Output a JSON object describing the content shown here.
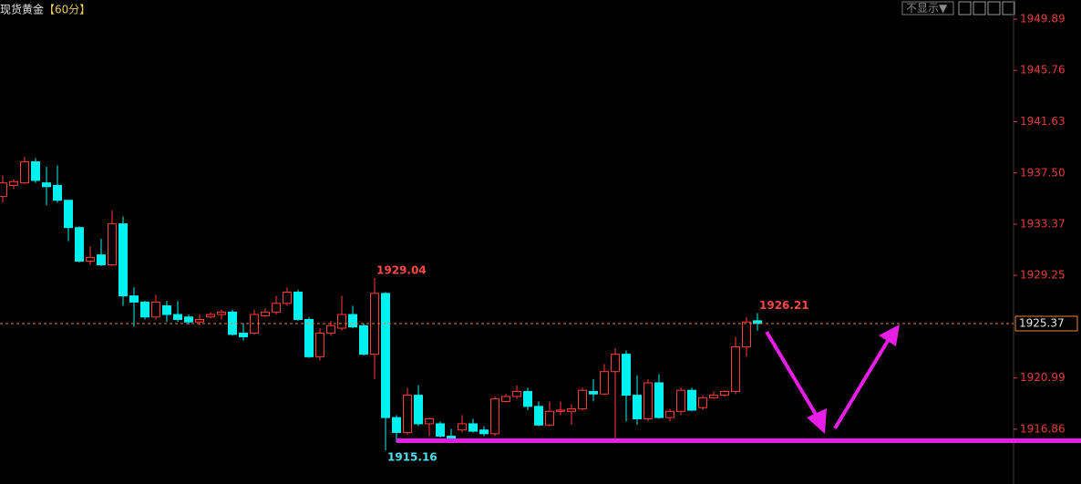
{
  "header": {
    "title": "现货黄金",
    "period": "【60分】",
    "display_button": "不显示▼"
  },
  "chart_data": {
    "type": "candlestick",
    "series": [
      {
        "up_color": "#ff3c3c",
        "down_color": "#00f0f0",
        "open": [
          1935.6,
          1936.5,
          1936.7,
          1938.4,
          1936.7,
          1936.5,
          1935.3,
          1933.1,
          1930.4,
          1930.9,
          1930.1,
          1933.4,
          1927.6,
          1927.1,
          1925.9,
          1926.8,
          1926.1,
          1925.9,
          1925.5,
          1925.9,
          1926.1,
          1926.3,
          1924.6,
          1924.6,
          1926.0,
          1926.3,
          1927.0,
          1927.9,
          1925.7,
          1922.7,
          1924.6,
          1925.0,
          1926.1,
          1925.2,
          1922.9,
          1927.8,
          1917.8,
          1916.6,
          1919.6,
          1917.3,
          1917.3,
          1916.3,
          1916.8,
          1917.3,
          1916.8,
          1916.5,
          1919.1,
          1919.5,
          1919.9,
          1918.7,
          1917.2,
          1918.3,
          1918.3,
          1918.5,
          1919.9,
          1919.7,
          1921.5,
          1922.9,
          1919.6,
          1917.7,
          1920.6,
          1917.8,
          1918.3,
          1920.0,
          1918.6,
          1919.4,
          1919.6,
          1919.9,
          1923.5,
          1925.6
        ],
        "high": [
          1937.3,
          1937.0,
          1938.8,
          1938.7,
          1938.0,
          1938.1,
          1935.3,
          1933.2,
          1931.6,
          1932.2,
          1934.5,
          1934.0,
          1928.3,
          1927.2,
          1927.7,
          1927.2,
          1927.2,
          1926.1,
          1926.1,
          1926.3,
          1926.5,
          1926.5,
          1925.4,
          1926.5,
          1926.6,
          1927.6,
          1928.3,
          1928.1,
          1925.9,
          1925.0,
          1925.6,
          1927.6,
          1926.8,
          1925.4,
          1929.04,
          1927.9,
          1918.0,
          1920.2,
          1920.4,
          1917.8,
          1917.5,
          1916.9,
          1918.0,
          1917.7,
          1917.1,
          1919.5,
          1919.7,
          1920.4,
          1920.2,
          1919.1,
          1919.1,
          1919.1,
          1918.9,
          1920.2,
          1920.9,
          1922.1,
          1923.4,
          1923.2,
          1921.2,
          1920.9,
          1921.3,
          1918.5,
          1920.2,
          1920.2,
          1919.6,
          1919.9,
          1920.0,
          1924.3,
          1925.9,
          1926.21
        ],
        "low": [
          1935.1,
          1936.2,
          1936.6,
          1936.7,
          1934.9,
          1935.1,
          1932.0,
          1930.3,
          1930.1,
          1930.0,
          1930.0,
          1926.8,
          1925.1,
          1925.7,
          1925.7,
          1925.5,
          1925.5,
          1925.3,
          1925.2,
          1925.8,
          1925.7,
          1924.4,
          1924.0,
          1924.5,
          1925.9,
          1926.1,
          1926.8,
          1925.6,
          1922.6,
          1922.4,
          1924.4,
          1924.8,
          1925.0,
          1922.8,
          1920.9,
          1915.16,
          1915.8,
          1916.4,
          1917.1,
          1916.3,
          1916.2,
          1915.9,
          1916.6,
          1916.6,
          1916.3,
          1916.3,
          1919.0,
          1919.3,
          1918.4,
          1917.1,
          1917.1,
          1918.0,
          1917.2,
          1918.4,
          1919.1,
          1919.6,
          1916.1,
          1917.5,
          1917.2,
          1917.5,
          1917.7,
          1917.5,
          1918.0,
          1918.3,
          1918.4,
          1919.3,
          1919.5,
          1919.7,
          1922.7,
          1924.8
        ],
        "close": [
          1936.7,
          1936.8,
          1938.4,
          1936.9,
          1936.4,
          1935.3,
          1933.1,
          1930.4,
          1930.7,
          1930.1,
          1933.4,
          1927.6,
          1927.1,
          1925.9,
          1927.1,
          1926.1,
          1925.7,
          1925.5,
          1925.7,
          1926.1,
          1926.3,
          1924.5,
          1924.3,
          1926.1,
          1926.3,
          1927.0,
          1927.9,
          1925.7,
          1922.7,
          1924.6,
          1925.2,
          1926.1,
          1925.1,
          1922.9,
          1927.8,
          1917.8,
          1916.6,
          1919.6,
          1917.3,
          1917.7,
          1916.3,
          1916.0,
          1917.3,
          1916.7,
          1916.5,
          1919.3,
          1919.5,
          1919.9,
          1918.7,
          1917.2,
          1918.3,
          1918.4,
          1918.5,
          1920.0,
          1919.7,
          1921.5,
          1922.9,
          1919.6,
          1917.7,
          1920.6,
          1917.8,
          1918.3,
          1920.0,
          1918.4,
          1919.4,
          1919.6,
          1919.9,
          1923.5,
          1925.5,
          1925.37
        ]
      }
    ],
    "ylim": [
      1912.45,
      1951.43
    ],
    "yticks": [
      1949.89,
      1945.76,
      1941.63,
      {
        "value": 1937.5,
        "label": "1937.50"
      },
      1933.37,
      1929.25,
      1920.99,
      1916.86
    ],
    "current_price_line": true,
    "current_price_color": "#e8833a"
  }
}
